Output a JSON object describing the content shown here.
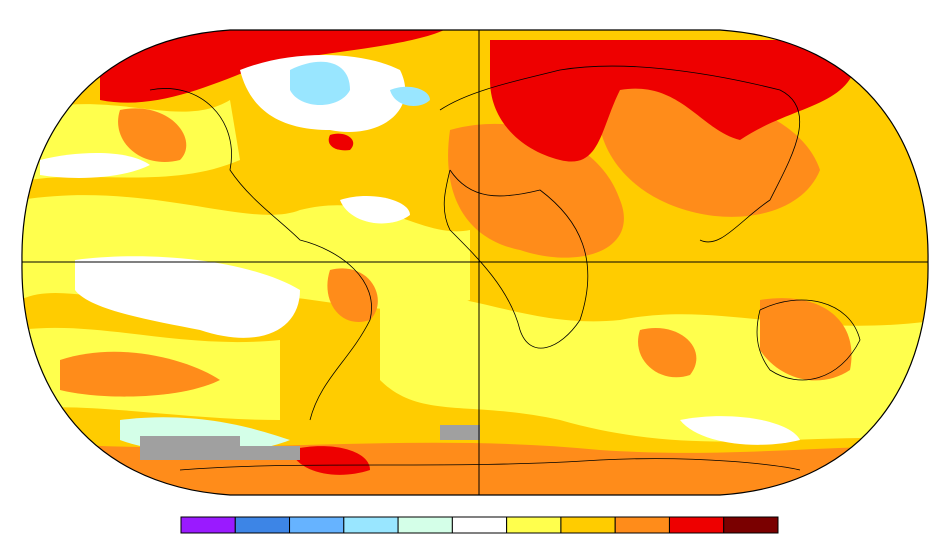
{
  "legend": {
    "colors": [
      "#9a1aff",
      "#3d85e6",
      "#66b3ff",
      "#99e6ff",
      "#d4ffe8",
      "#ffffff",
      "#ffff4d",
      "#ffcc00",
      "#ff8c1a",
      "#ee0000",
      "#7a0000"
    ]
  }
}
